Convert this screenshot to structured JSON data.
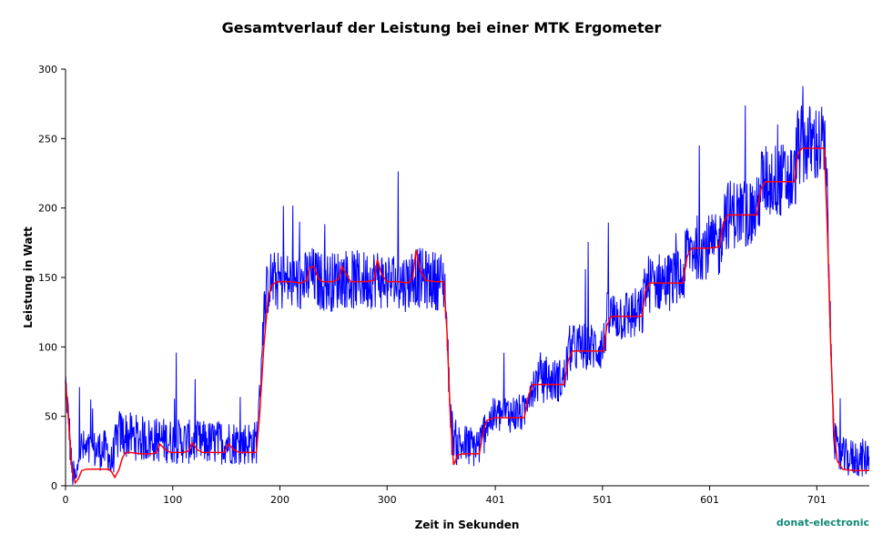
{
  "chart_data": {
    "type": "line",
    "title": "Gesamtverlauf der Leistung bei einer MTK Ergometer",
    "xlabel": "Zeit in Sekunden",
    "ylabel": "Leistung in Watt",
    "xlim": [
      0,
      750
    ],
    "ylim": [
      0,
      300
    ],
    "x_ticks": [
      0,
      100,
      200,
      300,
      401,
      501,
      601,
      701
    ],
    "x_tick_labels": [
      "0",
      "100",
      "200",
      "300",
      "401",
      "501",
      "601",
      "701"
    ],
    "y_ticks": [
      0,
      50,
      100,
      150,
      200,
      250,
      300
    ],
    "y_tick_labels": [
      "0",
      "50",
      "100",
      "150",
      "200",
      "250",
      "300"
    ],
    "grid": false,
    "legend": "none",
    "colors": {
      "raw": "#0000ff",
      "smoothed": "#ff0000"
    },
    "series": [
      {
        "style": "noisy",
        "color": "#0000ff",
        "points": [
          [
            0,
            75
          ],
          [
            3,
            45
          ],
          [
            6,
            10
          ],
          [
            10,
            3
          ],
          [
            13,
            28
          ],
          [
            20,
            24
          ],
          [
            30,
            26
          ],
          [
            40,
            25
          ],
          [
            42,
            14
          ],
          [
            47,
            30
          ],
          [
            50,
            38
          ],
          [
            60,
            36
          ],
          [
            70,
            34
          ],
          [
            80,
            33
          ],
          [
            90,
            33
          ],
          [
            100,
            32
          ],
          [
            110,
            32
          ],
          [
            120,
            31
          ],
          [
            130,
            31
          ],
          [
            140,
            31
          ],
          [
            150,
            32
          ],
          [
            160,
            31
          ],
          [
            170,
            31
          ],
          [
            178,
            31
          ],
          [
            181,
            60
          ],
          [
            184,
            115
          ],
          [
            187,
            135
          ],
          [
            190,
            148
          ],
          [
            200,
            147
          ],
          [
            210,
            147
          ],
          [
            220,
            146
          ],
          [
            225,
            148
          ],
          [
            228,
            152
          ],
          [
            235,
            148
          ],
          [
            240,
            147
          ],
          [
            250,
            147
          ],
          [
            255,
            149
          ],
          [
            258,
            151
          ],
          [
            265,
            148
          ],
          [
            280,
            148
          ],
          [
            290,
            150
          ],
          [
            300,
            147
          ],
          [
            310,
            146
          ],
          [
            320,
            147
          ],
          [
            325,
            153
          ],
          [
            328,
            150
          ],
          [
            340,
            148
          ],
          [
            350,
            148
          ],
          [
            354,
            145
          ],
          [
            357,
            90
          ],
          [
            360,
            40
          ],
          [
            365,
            30
          ],
          [
            380,
            28
          ],
          [
            388,
            30
          ],
          [
            392,
            45
          ],
          [
            400,
            50
          ],
          [
            410,
            52
          ],
          [
            420,
            52
          ],
          [
            428,
            52
          ],
          [
            432,
            70
          ],
          [
            440,
            75
          ],
          [
            460,
            76
          ],
          [
            465,
            76
          ],
          [
            470,
            98
          ],
          [
            480,
            100
          ],
          [
            495,
            100
          ],
          [
            502,
            100
          ],
          [
            505,
            120
          ],
          [
            515,
            123
          ],
          [
            530,
            123
          ],
          [
            538,
            124
          ],
          [
            541,
            145
          ],
          [
            555,
            147
          ],
          [
            570,
            148
          ],
          [
            576,
            148
          ],
          [
            580,
            170
          ],
          [
            590,
            172
          ],
          [
            605,
            172
          ],
          [
            610,
            172
          ],
          [
            614,
            195
          ],
          [
            625,
            196
          ],
          [
            640,
            197
          ],
          [
            645,
            197
          ],
          [
            649,
            218
          ],
          [
            660,
            220
          ],
          [
            675,
            220
          ],
          [
            680,
            220
          ],
          [
            683,
            244
          ],
          [
            695,
            246
          ],
          [
            705,
            246
          ],
          [
            708,
            246
          ],
          [
            711,
            200
          ],
          [
            714,
            100
          ],
          [
            717,
            40
          ],
          [
            720,
            22
          ],
          [
            730,
            20
          ],
          [
            740,
            20
          ],
          [
            750,
            20
          ]
        ]
      },
      {
        "style": "smooth",
        "color": "#ff0000",
        "points": [
          [
            0,
            75
          ],
          [
            3,
            45
          ],
          [
            6,
            12
          ],
          [
            9,
            2
          ],
          [
            12,
            5
          ],
          [
            15,
            11
          ],
          [
            20,
            12
          ],
          [
            30,
            12
          ],
          [
            40,
            12
          ],
          [
            43,
            10
          ],
          [
            46,
            6
          ],
          [
            50,
            12
          ],
          [
            53,
            20
          ],
          [
            56,
            24
          ],
          [
            60,
            24
          ],
          [
            70,
            23
          ],
          [
            80,
            23
          ],
          [
            85,
            24
          ],
          [
            88,
            30
          ],
          [
            93,
            26
          ],
          [
            98,
            24
          ],
          [
            110,
            24
          ],
          [
            115,
            25
          ],
          [
            118,
            31
          ],
          [
            123,
            26
          ],
          [
            128,
            24
          ],
          [
            140,
            24
          ],
          [
            148,
            24
          ],
          [
            152,
            30
          ],
          [
            157,
            26
          ],
          [
            162,
            24
          ],
          [
            178,
            24
          ],
          [
            181,
            50
          ],
          [
            185,
            100
          ],
          [
            189,
            135
          ],
          [
            192,
            144
          ],
          [
            197,
            147
          ],
          [
            210,
            147
          ],
          [
            220,
            146
          ],
          [
            225,
            148
          ],
          [
            228,
            157
          ],
          [
            232,
            158
          ],
          [
            236,
            149
          ],
          [
            240,
            147
          ],
          [
            250,
            147
          ],
          [
            255,
            149
          ],
          [
            258,
            158
          ],
          [
            262,
            152
          ],
          [
            266,
            147
          ],
          [
            280,
            147
          ],
          [
            288,
            148
          ],
          [
            291,
            163
          ],
          [
            295,
            152
          ],
          [
            300,
            147
          ],
          [
            310,
            147
          ],
          [
            320,
            146
          ],
          [
            324,
            150
          ],
          [
            327,
            170
          ],
          [
            331,
            155
          ],
          [
            336,
            148
          ],
          [
            345,
            147
          ],
          [
            353,
            147
          ],
          [
            356,
            110
          ],
          [
            359,
            50
          ],
          [
            362,
            15
          ],
          [
            366,
            22
          ],
          [
            370,
            23
          ],
          [
            380,
            23
          ],
          [
            386,
            23
          ],
          [
            390,
            40
          ],
          [
            393,
            47
          ],
          [
            400,
            49
          ],
          [
            410,
            49
          ],
          [
            420,
            49
          ],
          [
            428,
            49
          ],
          [
            432,
            65
          ],
          [
            436,
            73
          ],
          [
            450,
            73
          ],
          [
            465,
            73
          ],
          [
            469,
            90
          ],
          [
            473,
            97
          ],
          [
            490,
            97
          ],
          [
            502,
            97
          ],
          [
            505,
            115
          ],
          [
            509,
            122
          ],
          [
            525,
            122
          ],
          [
            538,
            122
          ],
          [
            541,
            140
          ],
          [
            545,
            146
          ],
          [
            560,
            146
          ],
          [
            576,
            146
          ],
          [
            580,
            165
          ],
          [
            584,
            171
          ],
          [
            600,
            171
          ],
          [
            610,
            172
          ],
          [
            614,
            190
          ],
          [
            618,
            195
          ],
          [
            630,
            195
          ],
          [
            645,
            195
          ],
          [
            649,
            214
          ],
          [
            653,
            219
          ],
          [
            665,
            219
          ],
          [
            680,
            219
          ],
          [
            683,
            238
          ],
          [
            687,
            243
          ],
          [
            700,
            243
          ],
          [
            708,
            243
          ],
          [
            711,
            180
          ],
          [
            714,
            100
          ],
          [
            717,
            40
          ],
          [
            720,
            18
          ],
          [
            725,
            12
          ],
          [
            735,
            11
          ],
          [
            750,
            11
          ]
        ]
      }
    ]
  },
  "watermark": {
    "text": "donat-electronic",
    "color": "#118877"
  }
}
